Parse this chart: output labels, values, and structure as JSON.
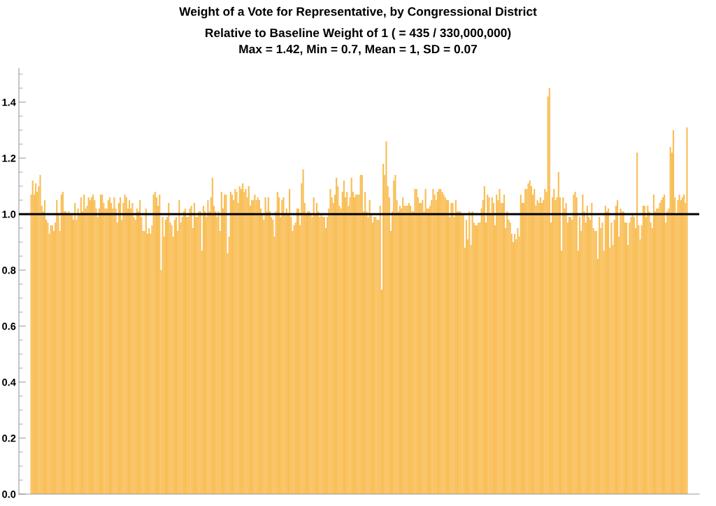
{
  "chart_data": {
    "type": "bar",
    "title": "Weight of a Vote for Representative, by Congressional District",
    "subtitle": "Relative to Baseline Weight of 1 ( = 435 / 330,000,000)\nMax = 1.42, Min = 0.7, Mean = 1, SD = 0.07",
    "categories": [
      null,
      null,
      null,
      null,
      null,
      null,
      null,
      null,
      null,
      null,
      null,
      null,
      null,
      null,
      null,
      null,
      null,
      null,
      null,
      null,
      null,
      null,
      null,
      null,
      null,
      null,
      null,
      null,
      null,
      null,
      null,
      null,
      null,
      null,
      null,
      null,
      null,
      null,
      null,
      null,
      null,
      null,
      null,
      null,
      null,
      null,
      null,
      null,
      null,
      null,
      null,
      null,
      null,
      null,
      null,
      null,
      null,
      null,
      null,
      null,
      null,
      null,
      null,
      null,
      null,
      null,
      null,
      null,
      null,
      null,
      null,
      null,
      null,
      null,
      null,
      null,
      null,
      null,
      null,
      null,
      null,
      null,
      null,
      null,
      null,
      null,
      null,
      null,
      null,
      null,
      null,
      null,
      null,
      null,
      null,
      null,
      null,
      null,
      null,
      null,
      null,
      null,
      null,
      null,
      null,
      null,
      null,
      null,
      null,
      null,
      null,
      null,
      null,
      null,
      null,
      null,
      null,
      null,
      null,
      null,
      null,
      null,
      null,
      null,
      null,
      null,
      null,
      null,
      null,
      null,
      null,
      null,
      null,
      null,
      null,
      null,
      null,
      null,
      null,
      null,
      null,
      null,
      null,
      null,
      null,
      null,
      null,
      null,
      null,
      null,
      null,
      null,
      null,
      null,
      null,
      null,
      null,
      null,
      null,
      null,
      null,
      null,
      null,
      null,
      null,
      null,
      null,
      null,
      null,
      null,
      null,
      null,
      null,
      null,
      null,
      null,
      null,
      null,
      null,
      null,
      null,
      null,
      null,
      null,
      null,
      null,
      null,
      null,
      null,
      null,
      null,
      null,
      null,
      null,
      null,
      null,
      null,
      null,
      null,
      null,
      null,
      null,
      null,
      null,
      null,
      null,
      null,
      null,
      null,
      null,
      null,
      null,
      null,
      null,
      null,
      null,
      null,
      null,
      null,
      null,
      null,
      null,
      null,
      null,
      null,
      null,
      null,
      null,
      null,
      null,
      null,
      null,
      null,
      null,
      null,
      null,
      null,
      null,
      null,
      null,
      null,
      null,
      null,
      null,
      null,
      null,
      null,
      null,
      null,
      null,
      null,
      null,
      null,
      null,
      null,
      null,
      null,
      null,
      null,
      null,
      null,
      null,
      null,
      null,
      null,
      null,
      null,
      null,
      null,
      null,
      null,
      null,
      null,
      null,
      null,
      null,
      null,
      null,
      null,
      null,
      null,
      null,
      null,
      null,
      null,
      null,
      null,
      null,
      null,
      null,
      null,
      null,
      null,
      null,
      null,
      null,
      null,
      null,
      null,
      null,
      null,
      null,
      null,
      null,
      null,
      null,
      null,
      null,
      null,
      null,
      null,
      null,
      null,
      null,
      null,
      null,
      null,
      null,
      null,
      null,
      null,
      null,
      null,
      null,
      null,
      null,
      null,
      null,
      null,
      null,
      null,
      null,
      null,
      null,
      null,
      null,
      null,
      null,
      null,
      null,
      null,
      null,
      null,
      null,
      null,
      null,
      null,
      null,
      null,
      null,
      null,
      null,
      null,
      null,
      null,
      null,
      null,
      null,
      null,
      null,
      null,
      null,
      null,
      null,
      null,
      null,
      null,
      null,
      null,
      null,
      null,
      null,
      null,
      null,
      null,
      null,
      null,
      null,
      null,
      null,
      null,
      null,
      null,
      null,
      null,
      null,
      null,
      null,
      null,
      null,
      null,
      null,
      null,
      null,
      null,
      null,
      null,
      null,
      null,
      null,
      null,
      null,
      null,
      null,
      null,
      null,
      null,
      null,
      null,
      null,
      null,
      null,
      null,
      null,
      null,
      null,
      null,
      null,
      null,
      null,
      null,
      null,
      null,
      null,
      null,
      null,
      null,
      null,
      null,
      null,
      null,
      null,
      null,
      null,
      null
    ],
    "values": [
      1.07,
      1.12,
      1.07,
      1.11,
      1.08,
      1.1,
      1.14,
      1.03,
      1.01,
      1.05,
      0.98,
      0.97,
      0.93,
      0.96,
      0.96,
      0.94,
      0.97,
      1.05,
      1.0,
      0.94,
      1.07,
      1.08,
      1.01,
      1.01,
      1.0,
      1.01,
      1.0,
      1.0,
      0.98,
      1.04,
      0.98,
      1.02,
      1.0,
      1.06,
      1.01,
      1.07,
      1.02,
      1.03,
      1.06,
      1.05,
      1.06,
      1.07,
      1.05,
      1.02,
      0.99,
      1.02,
      1.07,
      1.07,
      1.04,
      1.02,
      1.02,
      1.05,
      1.06,
      1.04,
      1.02,
      1.06,
      1.02,
      0.97,
      1.04,
      1.06,
      0.98,
      1.04,
      1.07,
      1.06,
      1.02,
      1.05,
      1.02,
      1.04,
      0.99,
      0.98,
      1.02,
      1.01,
      1.05,
      0.99,
      0.94,
      0.94,
      1.02,
      0.93,
      0.95,
      0.93,
      0.96,
      1.07,
      1.08,
      1.06,
      1.03,
      1.07,
      0.8,
      0.99,
      0.92,
      0.98,
      0.99,
      1.04,
      0.97,
      0.96,
      0.92,
      0.98,
      0.99,
      0.94,
      1.05,
      0.97,
      0.99,
      1.01,
      1.02,
      0.99,
      0.99,
      1.02,
      1.03,
      0.95,
      1.04,
      0.99,
      0.99,
      1.01,
      1.01,
      0.87,
      1.03,
      1.01,
      0.99,
      1.05,
      1.01,
      1.06,
      1.13,
      1.03,
      1.01,
      0.99,
      1.01,
      0.94,
      1.08,
      1.02,
      1.07,
      1.07,
      0.86,
      0.92,
      1.08,
      1.07,
      1.05,
      1.09,
      1.08,
      1.04,
      1.1,
      1.09,
      1.11,
      1.08,
      1.09,
      1.06,
      1.1,
      1.03,
      1.05,
      1.05,
      1.07,
      1.05,
      1.06,
      1.05,
      1.02,
      1.0,
      0.98,
      1.06,
      1.01,
      1.06,
      1.01,
      0.99,
      0.98,
      0.92,
      1.01,
      1.08,
      1.06,
      0.99,
      1.05,
      1.06,
      1.0,
      1.02,
      1.0,
      1.09,
      0.99,
      0.94,
      0.96,
      0.97,
      1.02,
      1.02,
      0.96,
      1.11,
      1.16,
      1.04,
      1.0,
      1.01,
      1.01,
      1.0,
      0.99,
      1.06,
      1.0,
      1.04,
      1.01,
      0.99,
      1.0,
      0.99,
      0.99,
      0.95,
      0.99,
      1.02,
      1.09,
      1.06,
      1.04,
      1.07,
      1.13,
      1.1,
      1.03,
      1.02,
      1.08,
      1.12,
      1.06,
      1.08,
      1.03,
      1.06,
      1.13,
      1.08,
      1.06,
      1.07,
      1.07,
      1.07,
      1.14,
      1.14,
      1.01,
      1.08,
      1.01,
      0.99,
      1.05,
      1.0,
      0.97,
      0.99,
      0.99,
      0.98,
      0.98,
      1.03,
      0.73,
      1.18,
      1.14,
      1.26,
      1.1,
      1.06,
      0.94,
      1.01,
      1.12,
      1.14,
      1.05,
      1.01,
      1.03,
      1.02,
      1.06,
      1.03,
      1.03,
      1.03,
      1.04,
      1.03,
      1.01,
      1.01,
      1.09,
      1.09,
      1.06,
      1.04,
      1.04,
      1.05,
      1.01,
      1.09,
      1.02,
      1.02,
      1.03,
      1.05,
      1.09,
      1.07,
      1.05,
      1.08,
      1.09,
      1.09,
      1.08,
      1.07,
      1.06,
      1.05,
      1.05,
      0.99,
      1.04,
      1.04,
      0.99,
      1.05,
      1.01,
      1.01,
      1.01,
      1.0,
      1.0,
      0.88,
      0.98,
      0.91,
      1.01,
      0.89,
      1.01,
      0.97,
      0.96,
      0.96,
      0.97,
      0.97,
      1.02,
      1.05,
      1.1,
      0.97,
      1.07,
      1.06,
      1.0,
      1.06,
      1.04,
      0.96,
      1.07,
      1.05,
      1.09,
      1.04,
      1.04,
      1.07,
      0.95,
      1.01,
      0.98,
      0.97,
      0.93,
      0.9,
      0.93,
      0.91,
      0.95,
      0.92,
      1.07,
      1.04,
      1.04,
      1.09,
      1.09,
      1.11,
      1.12,
      1.1,
      1.07,
      1.09,
      1.03,
      1.05,
      1.04,
      1.06,
      1.04,
      1.05,
      1.09,
      1.08,
      1.42,
      1.45,
      0.97,
      1.06,
      1.09,
      1.05,
      1.06,
      1.15,
      1.06,
      0.87,
      1.06,
      1.02,
      1.04,
      0.97,
      0.99,
      0.99,
      0.98,
      1.07,
      1.08,
      1.06,
      0.87,
      0.99,
      0.94,
      1.07,
      1.01,
      0.97,
      1.03,
      0.99,
      0.98,
      1.04,
      0.95,
      0.94,
      0.94,
      0.84,
      0.99,
      0.95,
      0.97,
      0.87,
      1.03,
      1.01,
      1.02,
      0.88,
      0.97,
      0.89,
      0.98,
      1.03,
      1.05,
      0.92,
      1.02,
      1.01,
      1.01,
      0.97,
      0.97,
      0.89,
      0.97,
      0.99,
      1.0,
      0.99,
      0.95,
      1.22,
      0.96,
      0.91,
      0.96,
      1.03,
      1.03,
      0.99,
      1.03,
      1.01,
      0.97,
      0.95,
      1.07,
      1.01,
      1.02,
      1.02,
      1.04,
      1.05,
      1.06,
      1.07,
      0.97,
      1.01,
      1.02,
      1.24,
      1.22,
      1.3,
      1.06,
      1.0,
      1.05,
      1.07,
      1.05,
      1.06,
      1.07,
      1.04,
      1.31
    ],
    "color": "#f9be56",
    "ylim": [
      0,
      1.52
    ],
    "yticks": [
      {
        "value": 0,
        "label": "0.0"
      },
      {
        "value": 0.05,
        "label": null
      },
      {
        "value": 0.1,
        "label": null
      },
      {
        "value": 0.15,
        "label": null
      },
      {
        "value": 0.2,
        "label": "0.2"
      },
      {
        "value": 0.25,
        "label": null
      },
      {
        "value": 0.3,
        "label": null
      },
      {
        "value": 0.35,
        "label": null
      },
      {
        "value": 0.4,
        "label": "0.4"
      },
      {
        "value": 0.45,
        "label": null
      },
      {
        "value": 0.5,
        "label": null
      },
      {
        "value": 0.55,
        "label": null
      },
      {
        "value": 0.6,
        "label": "0.6"
      },
      {
        "value": 0.65,
        "label": null
      },
      {
        "value": 0.7,
        "label": null
      },
      {
        "value": 0.75,
        "label": null
      },
      {
        "value": 0.8,
        "label": "0.8"
      },
      {
        "value": 0.85,
        "label": null
      },
      {
        "value": 0.9,
        "label": null
      },
      {
        "value": 0.95,
        "label": null
      },
      {
        "value": 1.0,
        "label": "1.0"
      },
      {
        "value": 1.05,
        "label": null
      },
      {
        "value": 1.1,
        "label": null
      },
      {
        "value": 1.15,
        "label": null
      },
      {
        "value": 1.2,
        "label": "1.2"
      },
      {
        "value": 1.25,
        "label": null
      },
      {
        "value": 1.3,
        "label": null
      },
      {
        "value": 1.35,
        "label": null
      },
      {
        "value": 1.4,
        "label": "1.4"
      },
      {
        "value": 1.45,
        "label": null
      },
      {
        "value": 1.5,
        "label": null
      }
    ],
    "ref_lines": [
      {
        "axis": "y",
        "value": 1,
        "color": "#000000"
      }
    ]
  }
}
